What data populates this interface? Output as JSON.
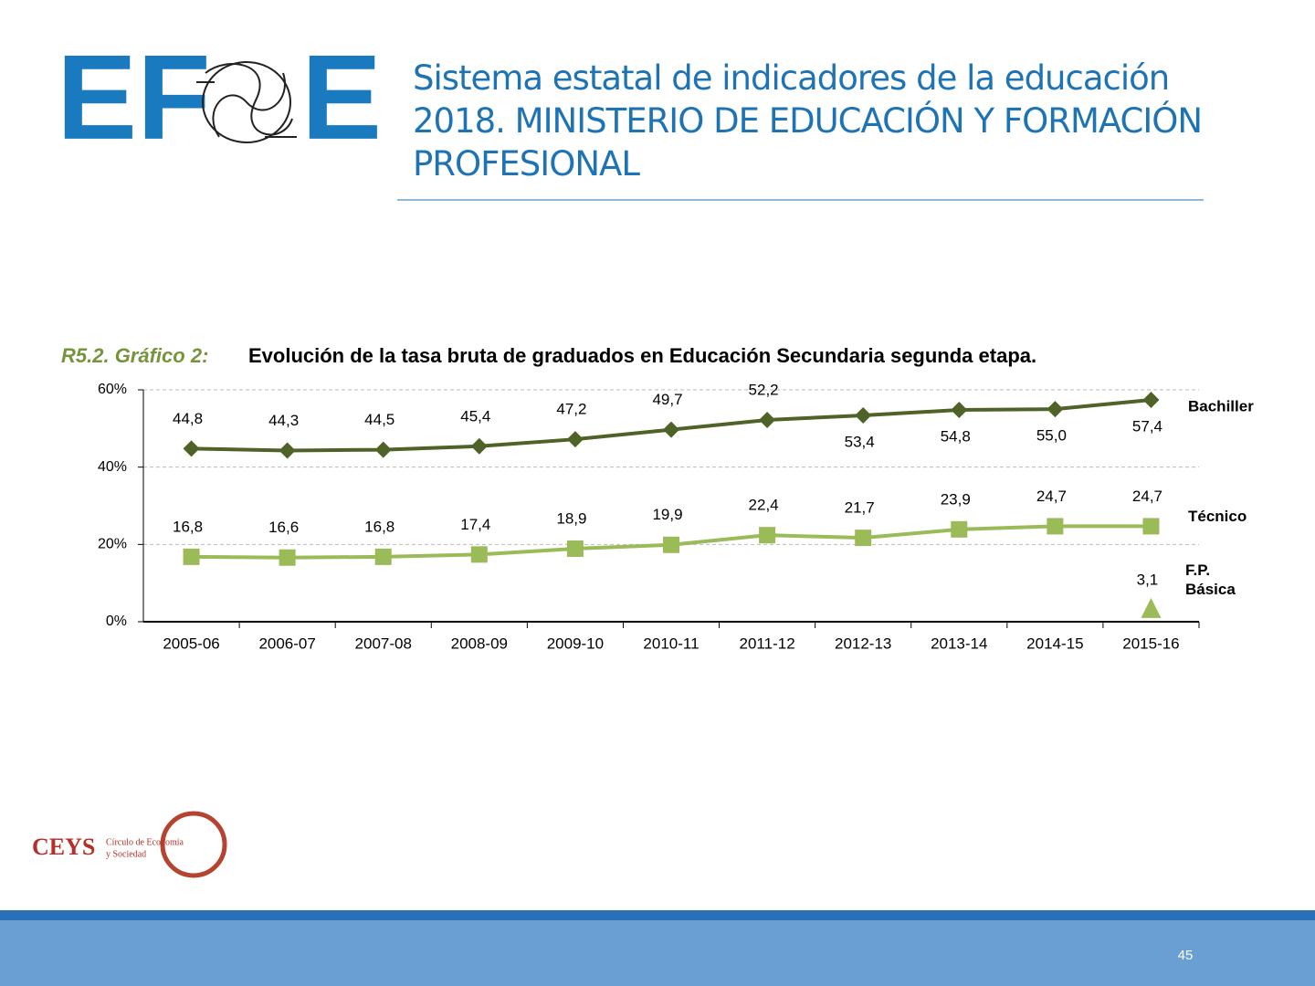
{
  "header": {
    "logo_left": "EF",
    "logo_right": "E",
    "title": "Sistema estatal de indicadores de la educación 2018. MINISTERIO DE EDUCACIÓN  Y FORMACIÓN PROFESIONAL"
  },
  "chart_data": {
    "type": "line",
    "title_prefix": "R5.2. Gráfico 2:",
    "title": "Evolución de la tasa bruta de graduados en Educación Secundaria segunda etapa.",
    "categories": [
      "2005-06",
      "2006-07",
      "2007-08",
      "2008-09",
      "2009-10",
      "2010-11",
      "2011-12",
      "2012-13",
      "2013-14",
      "2014-15",
      "2015-16"
    ],
    "ylim": [
      0,
      60
    ],
    "yticks": [
      {
        "value": 0,
        "label": "0%"
      },
      {
        "value": 20,
        "label": "20%"
      },
      {
        "value": 40,
        "label": "40%"
      },
      {
        "value": 60,
        "label": "60%"
      }
    ],
    "grid": true,
    "series": [
      {
        "name": "Bachiller",
        "color": "#4f6228",
        "marker": "diamond",
        "values": [
          44.8,
          44.3,
          44.5,
          45.4,
          47.2,
          49.7,
          52.2,
          53.4,
          54.8,
          55.0,
          57.4
        ],
        "value_labels": [
          "44,8",
          "44,3",
          "44,5",
          "45,4",
          "47,2",
          "49,7",
          "52,2",
          "53,4",
          "54,8",
          "55,0",
          "57,4"
        ]
      },
      {
        "name": "Técnico",
        "color": "#9bbb59",
        "marker": "square",
        "values": [
          16.8,
          16.6,
          16.8,
          17.4,
          18.9,
          19.9,
          22.4,
          21.7,
          23.9,
          24.7,
          24.7
        ],
        "value_labels": [
          "16,8",
          "16,6",
          "16,8",
          "17,4",
          "18,9",
          "19,9",
          "22,4",
          "21,7",
          "23,9",
          "24,7",
          "24,7"
        ]
      },
      {
        "name": "F.P. Básica",
        "color": "#9bbb59",
        "marker": "triangle",
        "values": [
          null,
          null,
          null,
          null,
          null,
          null,
          null,
          null,
          null,
          null,
          3.1
        ],
        "value_labels": [
          null,
          null,
          null,
          null,
          null,
          null,
          null,
          null,
          null,
          null,
          "3,1"
        ]
      }
    ]
  },
  "footer": {
    "brand": "CEYS",
    "brand_line1": "Círculo de Economía",
    "brand_line2": "y Sociedad",
    "page_number": "45"
  }
}
